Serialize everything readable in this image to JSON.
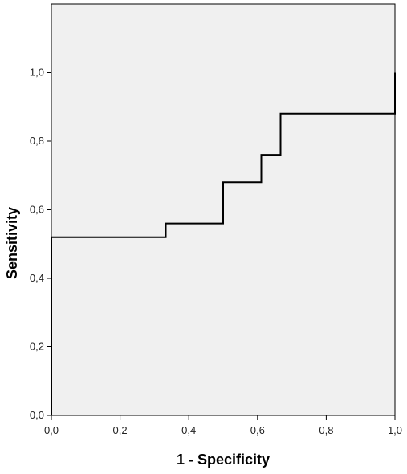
{
  "chart_data": {
    "type": "line",
    "title": "",
    "xlabel": "1 - Specificity",
    "ylabel": "Sensitivity",
    "xlim": [
      0,
      1
    ],
    "ylim": [
      0,
      1.2
    ],
    "x_ticks": [
      "0,0",
      "0,2",
      "0,4",
      "0,6",
      "0,8",
      "1,0"
    ],
    "y_ticks": [
      "0,0",
      "0,2",
      "0,4",
      "0,6",
      "0,8",
      "1,0"
    ],
    "grid": false,
    "plot_background": "#f0f0f0",
    "line_color": "#000000",
    "series": [
      {
        "x": [
          0,
          0,
          0.333,
          0.333,
          0.5,
          0.5,
          0.611,
          0.611,
          0.667,
          0.667,
          1.0,
          1.0
        ],
        "y": [
          0,
          0.52,
          0.52,
          0.56,
          0.56,
          0.68,
          0.68,
          0.76,
          0.76,
          0.88,
          0.88,
          1.0
        ]
      }
    ]
  }
}
